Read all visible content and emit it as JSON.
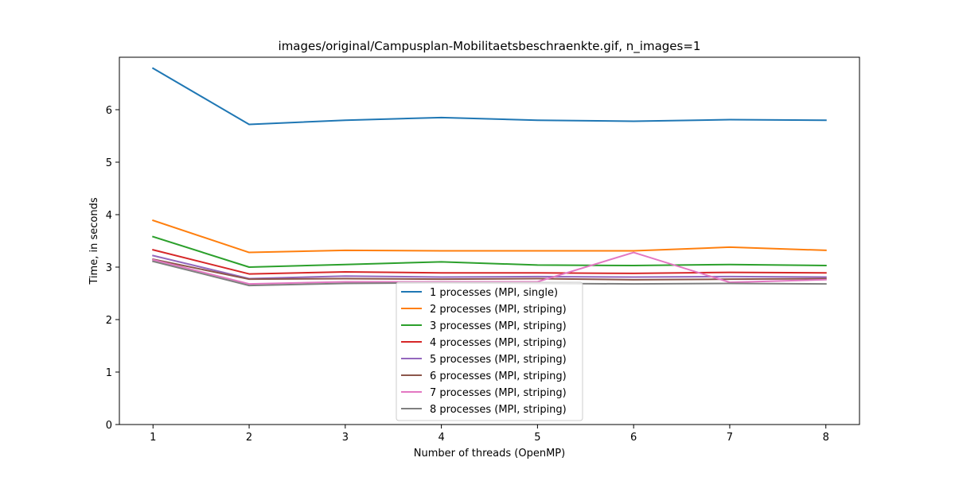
{
  "chart_data": {
    "type": "line",
    "title": "images/original/Campusplan-Mobilitaetsbeschraenkte.gif, n_images=1",
    "xlabel": "Number of threads (OpenMP)",
    "ylabel": "Time, in seconds",
    "x": [
      1,
      2,
      3,
      4,
      5,
      6,
      7,
      8
    ],
    "xlim": [
      0.65,
      8.35
    ],
    "ylim": [
      0,
      7.0
    ],
    "xticks": [
      1,
      2,
      3,
      4,
      5,
      6,
      7,
      8
    ],
    "yticks": [
      0,
      1,
      2,
      3,
      4,
      5,
      6
    ],
    "grid": false,
    "legend_position": "bottom-center",
    "series": [
      {
        "name": "1 processes (MPI, single)",
        "color": "#1f77b4",
        "values": [
          6.79,
          5.72,
          5.8,
          5.85,
          5.8,
          5.78,
          5.81,
          5.8
        ]
      },
      {
        "name": "2 processes (MPI, striping)",
        "color": "#ff7f0e",
        "values": [
          3.89,
          3.28,
          3.32,
          3.31,
          3.31,
          3.31,
          3.38,
          3.32
        ]
      },
      {
        "name": "3 processes (MPI, striping)",
        "color": "#2ca02c",
        "values": [
          3.58,
          3.0,
          3.05,
          3.1,
          3.04,
          3.03,
          3.05,
          3.03
        ]
      },
      {
        "name": "4 processes (MPI, striping)",
        "color": "#d62728",
        "values": [
          3.33,
          2.87,
          2.91,
          2.89,
          2.89,
          2.88,
          2.9,
          2.89
        ]
      },
      {
        "name": "5 processes (MPI, striping)",
        "color": "#9467bd",
        "values": [
          3.22,
          2.78,
          2.83,
          2.81,
          2.82,
          2.81,
          2.82,
          2.81
        ]
      },
      {
        "name": "6 processes (MPI, striping)",
        "color": "#8c564b",
        "values": [
          3.15,
          2.77,
          2.78,
          2.77,
          2.78,
          2.76,
          2.77,
          2.78
        ]
      },
      {
        "name": "7 processes (MPI, striping)",
        "color": "#e377c2",
        "values": [
          3.14,
          2.68,
          2.72,
          2.72,
          2.72,
          3.28,
          2.71,
          2.76
        ]
      },
      {
        "name": "8 processes (MPI, striping)",
        "color": "#7f7f7f",
        "values": [
          3.11,
          2.65,
          2.69,
          2.7,
          2.69,
          2.68,
          2.69,
          2.68
        ]
      }
    ]
  }
}
